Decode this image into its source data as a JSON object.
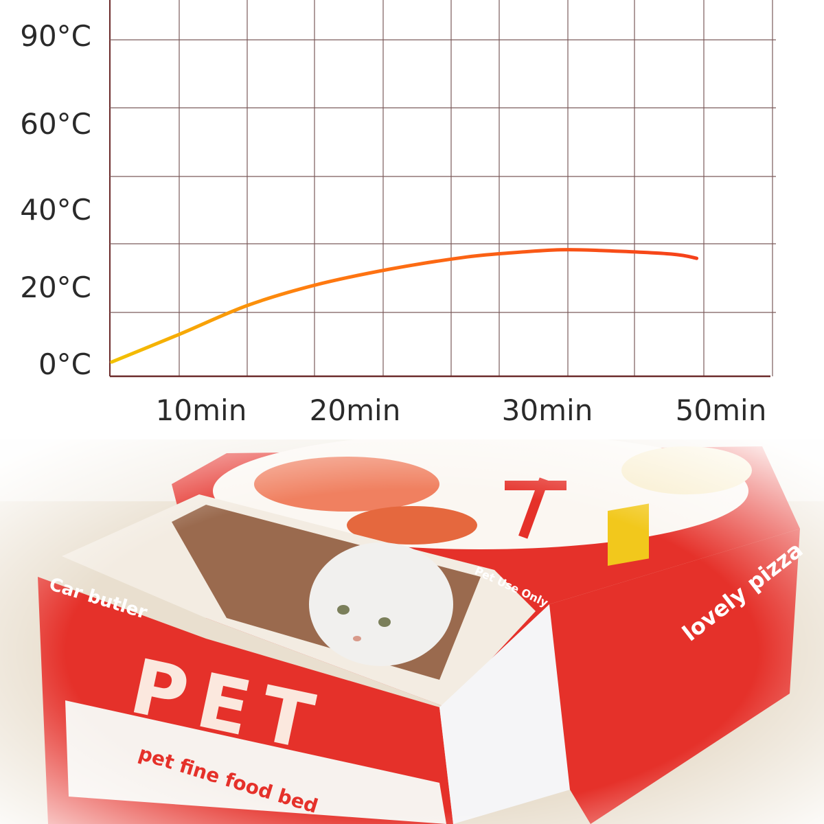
{
  "chart_data": {
    "type": "line",
    "title": "",
    "xlabel": "",
    "ylabel": "",
    "y_ticks": [
      {
        "label": "0°C",
        "value": 0
      },
      {
        "label": "20°C",
        "value": 20
      },
      {
        "label": "40°C",
        "value": 40
      },
      {
        "label": "60°C",
        "value": 60
      },
      {
        "label": "90°C",
        "value": 90
      }
    ],
    "x_ticks": [
      {
        "label": "10min",
        "value": 10
      },
      {
        "label": "20min",
        "value": 20
      },
      {
        "label": "30min",
        "value": 30
      },
      {
        "label": "50min",
        "value": 50
      }
    ],
    "grid": true,
    "line_gradient": [
      "#f2c200",
      "#ff7a10",
      "#f5401a"
    ],
    "grid_color": "#7a5a5a",
    "series": [
      {
        "x": [
          0.2,
          7.6,
          13,
          17.4,
          21.8,
          25.6,
          28.1,
          31.5,
          36.3,
          44.3,
          47.2
        ],
        "y": [
          0.5,
          7.7,
          15.2,
          20.5,
          24.6,
          27.6,
          28.8,
          29.6,
          29.4,
          28.5,
          27.4
        ]
      }
    ]
  },
  "photo": {
    "texts": {
      "brand": "Car butler",
      "big": "PET",
      "tagline": "pet fine food bed",
      "side": "lovely pizza",
      "badge": "Pet Use Only"
    },
    "colors": {
      "red": "#e5312a",
      "fur": "#f3ece2",
      "floor": "#e8dcc8"
    }
  }
}
